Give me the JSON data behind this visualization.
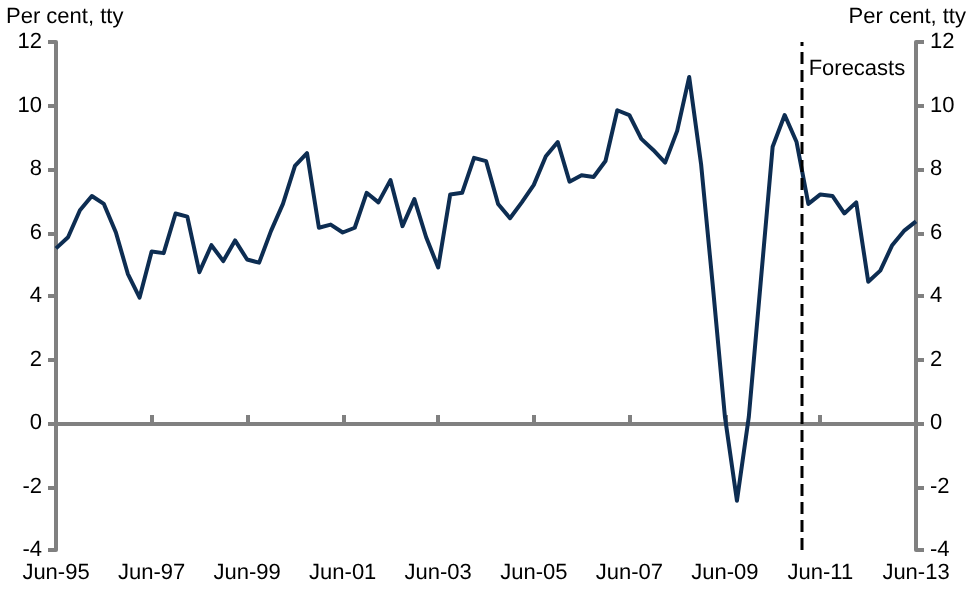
{
  "chart_data": {
    "type": "line",
    "ylabel": "Per cent, tty",
    "y2label": "Per cent, tty",
    "x": [
      "1995-06",
      "1995-09",
      "1995-12",
      "1996-03",
      "1996-06",
      "1996-09",
      "1996-12",
      "1997-03",
      "1997-06",
      "1997-09",
      "1997-12",
      "1998-03",
      "1998-06",
      "1998-09",
      "1998-12",
      "1999-03",
      "1999-06",
      "1999-09",
      "1999-12",
      "2000-03",
      "2000-06",
      "2000-09",
      "2000-12",
      "2001-03",
      "2001-06",
      "2001-09",
      "2001-12",
      "2002-03",
      "2002-06",
      "2002-09",
      "2002-12",
      "2003-03",
      "2003-06",
      "2003-09",
      "2003-12",
      "2004-03",
      "2004-06",
      "2004-09",
      "2004-12",
      "2005-03",
      "2005-06",
      "2005-09",
      "2005-12",
      "2006-03",
      "2006-06",
      "2006-09",
      "2006-12",
      "2007-03",
      "2007-06",
      "2007-09",
      "2007-12",
      "2008-03",
      "2008-06",
      "2008-09",
      "2008-12",
      "2009-03",
      "2009-06",
      "2009-09",
      "2009-12",
      "2010-03",
      "2010-06",
      "2010-09",
      "2010-12",
      "2011-03",
      "2011-06",
      "2011-09",
      "2011-12",
      "2012-03",
      "2012-06",
      "2012-09",
      "2012-12",
      "2013-03",
      "2013-06"
    ],
    "series": [
      {
        "color": "#0d2d52",
        "values": [
          5.5,
          5.85,
          6.7,
          7.15,
          6.9,
          6.0,
          4.7,
          3.95,
          5.4,
          5.35,
          6.6,
          6.5,
          4.75,
          5.6,
          5.1,
          5.75,
          5.15,
          5.05,
          6.05,
          6.9,
          8.1,
          8.5,
          6.15,
          6.25,
          6.0,
          6.15,
          7.25,
          6.95,
          7.65,
          6.2,
          7.05,
          5.85,
          4.9,
          7.2,
          7.25,
          8.35,
          8.25,
          6.9,
          6.45,
          6.95,
          7.5,
          8.4,
          8.85,
          7.6,
          7.8,
          7.75,
          8.25,
          9.85,
          9.7,
          8.95,
          8.6,
          8.2,
          9.2,
          10.9,
          8.15,
          4.3,
          0.2,
          -2.45,
          0.2,
          4.4,
          8.7,
          9.7,
          8.85,
          6.9,
          7.2,
          7.15,
          6.6,
          6.95,
          4.45,
          4.8,
          5.6,
          6.05,
          6.35
        ]
      }
    ],
    "xlim": [
      "1995-06",
      "2013-06"
    ],
    "xticks": [
      {
        "value": "1995-06",
        "label": "Jun-95"
      },
      {
        "value": "1997-06",
        "label": "Jun-97"
      },
      {
        "value": "1999-06",
        "label": "Jun-99"
      },
      {
        "value": "2001-06",
        "label": "Jun-01"
      },
      {
        "value": "2003-06",
        "label": "Jun-03"
      },
      {
        "value": "2005-06",
        "label": "Jun-05"
      },
      {
        "value": "2007-06",
        "label": "Jun-07"
      },
      {
        "value": "2009-06",
        "label": "Jun-09"
      },
      {
        "value": "2011-06",
        "label": "Jun-11"
      },
      {
        "value": "2013-06",
        "label": "Jun-13"
      }
    ],
    "ylim": [
      -4,
      12
    ],
    "yticks": [
      -4,
      -2,
      0,
      2,
      4,
      6,
      8,
      10,
      12
    ],
    "y2lim": [
      -4,
      12
    ],
    "y2ticks": [
      -4,
      -2,
      0,
      2,
      4,
      6,
      8,
      10,
      12
    ],
    "ref_lines": [
      {
        "axis": "x",
        "value": "2011-01",
        "label": "Forecasts",
        "color": "#000000",
        "line_style": "dashed"
      }
    ],
    "marker": "none",
    "line_style": "solid"
  }
}
